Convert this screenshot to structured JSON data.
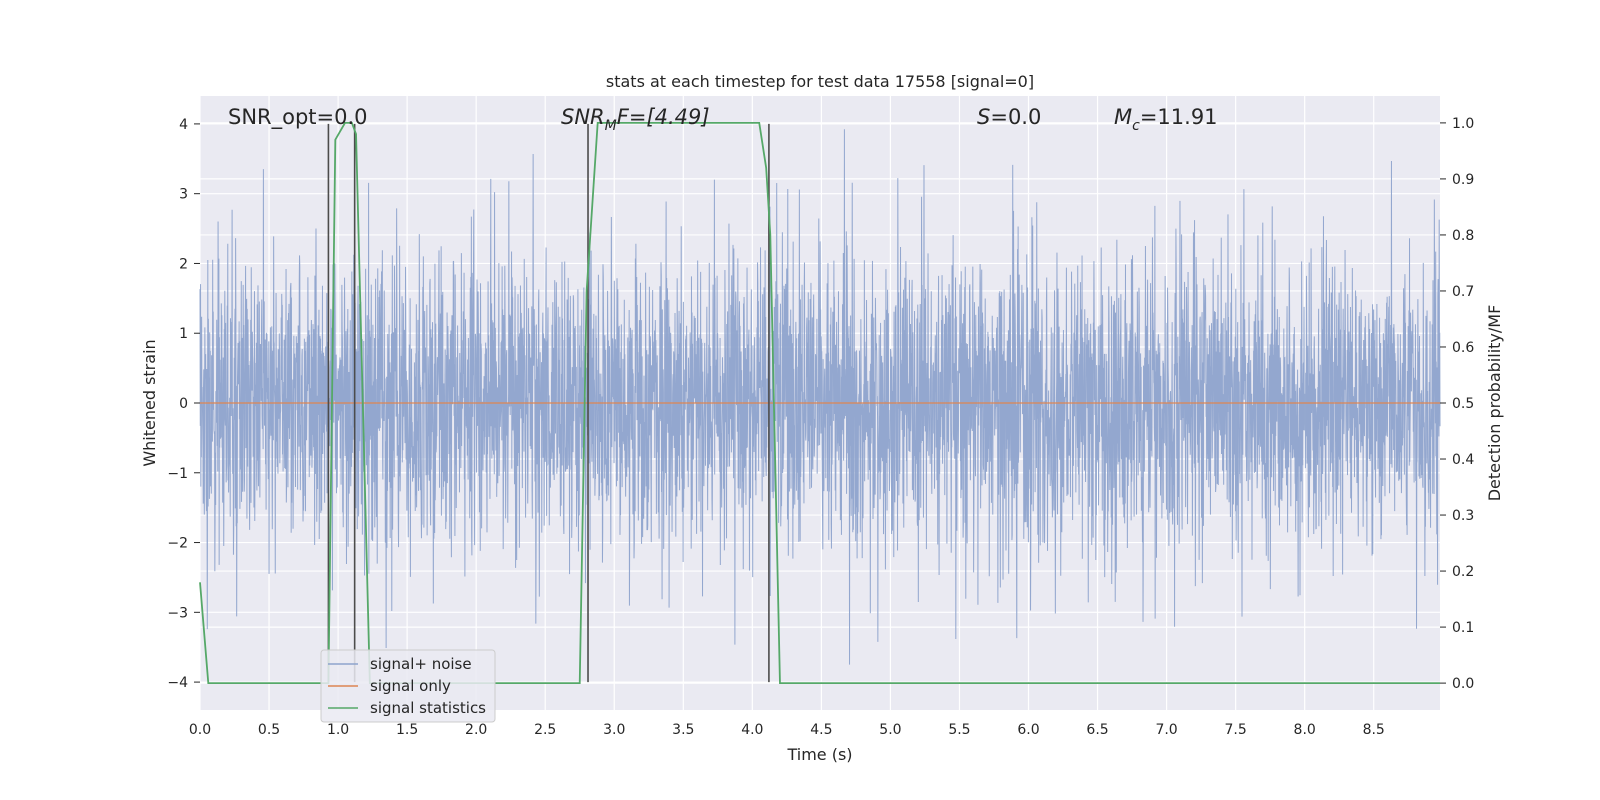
{
  "chart_data": {
    "type": "line",
    "title": "stats at each timestep for test data 17558 [signal=0]",
    "xlabel": "Time (s)",
    "ylabel_left": "Whitened strain",
    "ylabel_right": "Detection probability/MF",
    "xlim": [
      0.0,
      8.98
    ],
    "ylim_left": [
      -4.4,
      4.4
    ],
    "ylim_right": [
      -0.048,
      1.048
    ],
    "x_ticks": [
      "0.0",
      "0.5",
      "1.0",
      "1.5",
      "2.0",
      "2.5",
      "3.0",
      "3.5",
      "4.0",
      "4.5",
      "5.0",
      "5.5",
      "6.0",
      "6.5",
      "7.0",
      "7.5",
      "8.0",
      "8.5"
    ],
    "y_ticks_left": [
      "−4",
      "−3",
      "−2",
      "−1",
      "0",
      "1",
      "2",
      "3",
      "4"
    ],
    "y_ticks_right": [
      "0.0",
      "0.1",
      "0.2",
      "0.3",
      "0.4",
      "0.5",
      "0.6",
      "0.7",
      "0.8",
      "0.9",
      "1.0"
    ],
    "grid": true,
    "legend_position": "lower-left",
    "annotations": {
      "snr_opt": "SNR_opt=0.0",
      "snr_mf_main": "SNR",
      "snr_mf_sub": "M",
      "snr_mf_rest": "F=[4.49]",
      "s_main": "S",
      "s_rest": "=0.0",
      "mc_main": "M",
      "mc_sub": "c",
      "mc_rest": "=11.91"
    },
    "colors": {
      "noise": "#8ea3cc",
      "signal": "#dd8452",
      "stats": "#55a868",
      "vlines": "#4c4c4c",
      "background": "#eaeaf2",
      "grid": "#ffffff"
    },
    "series": [
      {
        "name": "signal+ noise",
        "description_kind": "whitened noise, amplitude ~ -3.7..3.9",
        "seed": 17558,
        "sample_rate_hz": 2048,
        "envelope_max": 3.95,
        "envelope_min": -3.75
      },
      {
        "name": "signal only",
        "x": [
          0.0,
          8.98
        ],
        "y": [
          0.0,
          0.0
        ]
      },
      {
        "name": "signal statistics",
        "axis": "right",
        "x": [
          0.0,
          0.06,
          0.1,
          0.9,
          0.93,
          0.98,
          1.05,
          1.1,
          1.13,
          1.23,
          1.3,
          2.75,
          2.8,
          2.88,
          3.0,
          4.05,
          4.1,
          4.13,
          4.2,
          4.25,
          8.98
        ],
        "y": [
          0.18,
          0.0,
          0.0,
          0.0,
          0.0,
          0.97,
          1.0,
          1.0,
          0.98,
          0.0,
          0.0,
          0.0,
          0.7,
          1.0,
          1.0,
          1.0,
          0.92,
          0.8,
          0.0,
          0.0,
          0.0
        ]
      }
    ],
    "vertical_lines": [
      {
        "x": 0.93,
        "y": [
          -4.0,
          4.0
        ]
      },
      {
        "x": 1.12,
        "y": [
          -4.0,
          4.0
        ]
      },
      {
        "x": 2.81,
        "y": [
          -4.0,
          4.0
        ]
      },
      {
        "x": 4.12,
        "y": [
          -4.0,
          4.0
        ]
      }
    ]
  }
}
